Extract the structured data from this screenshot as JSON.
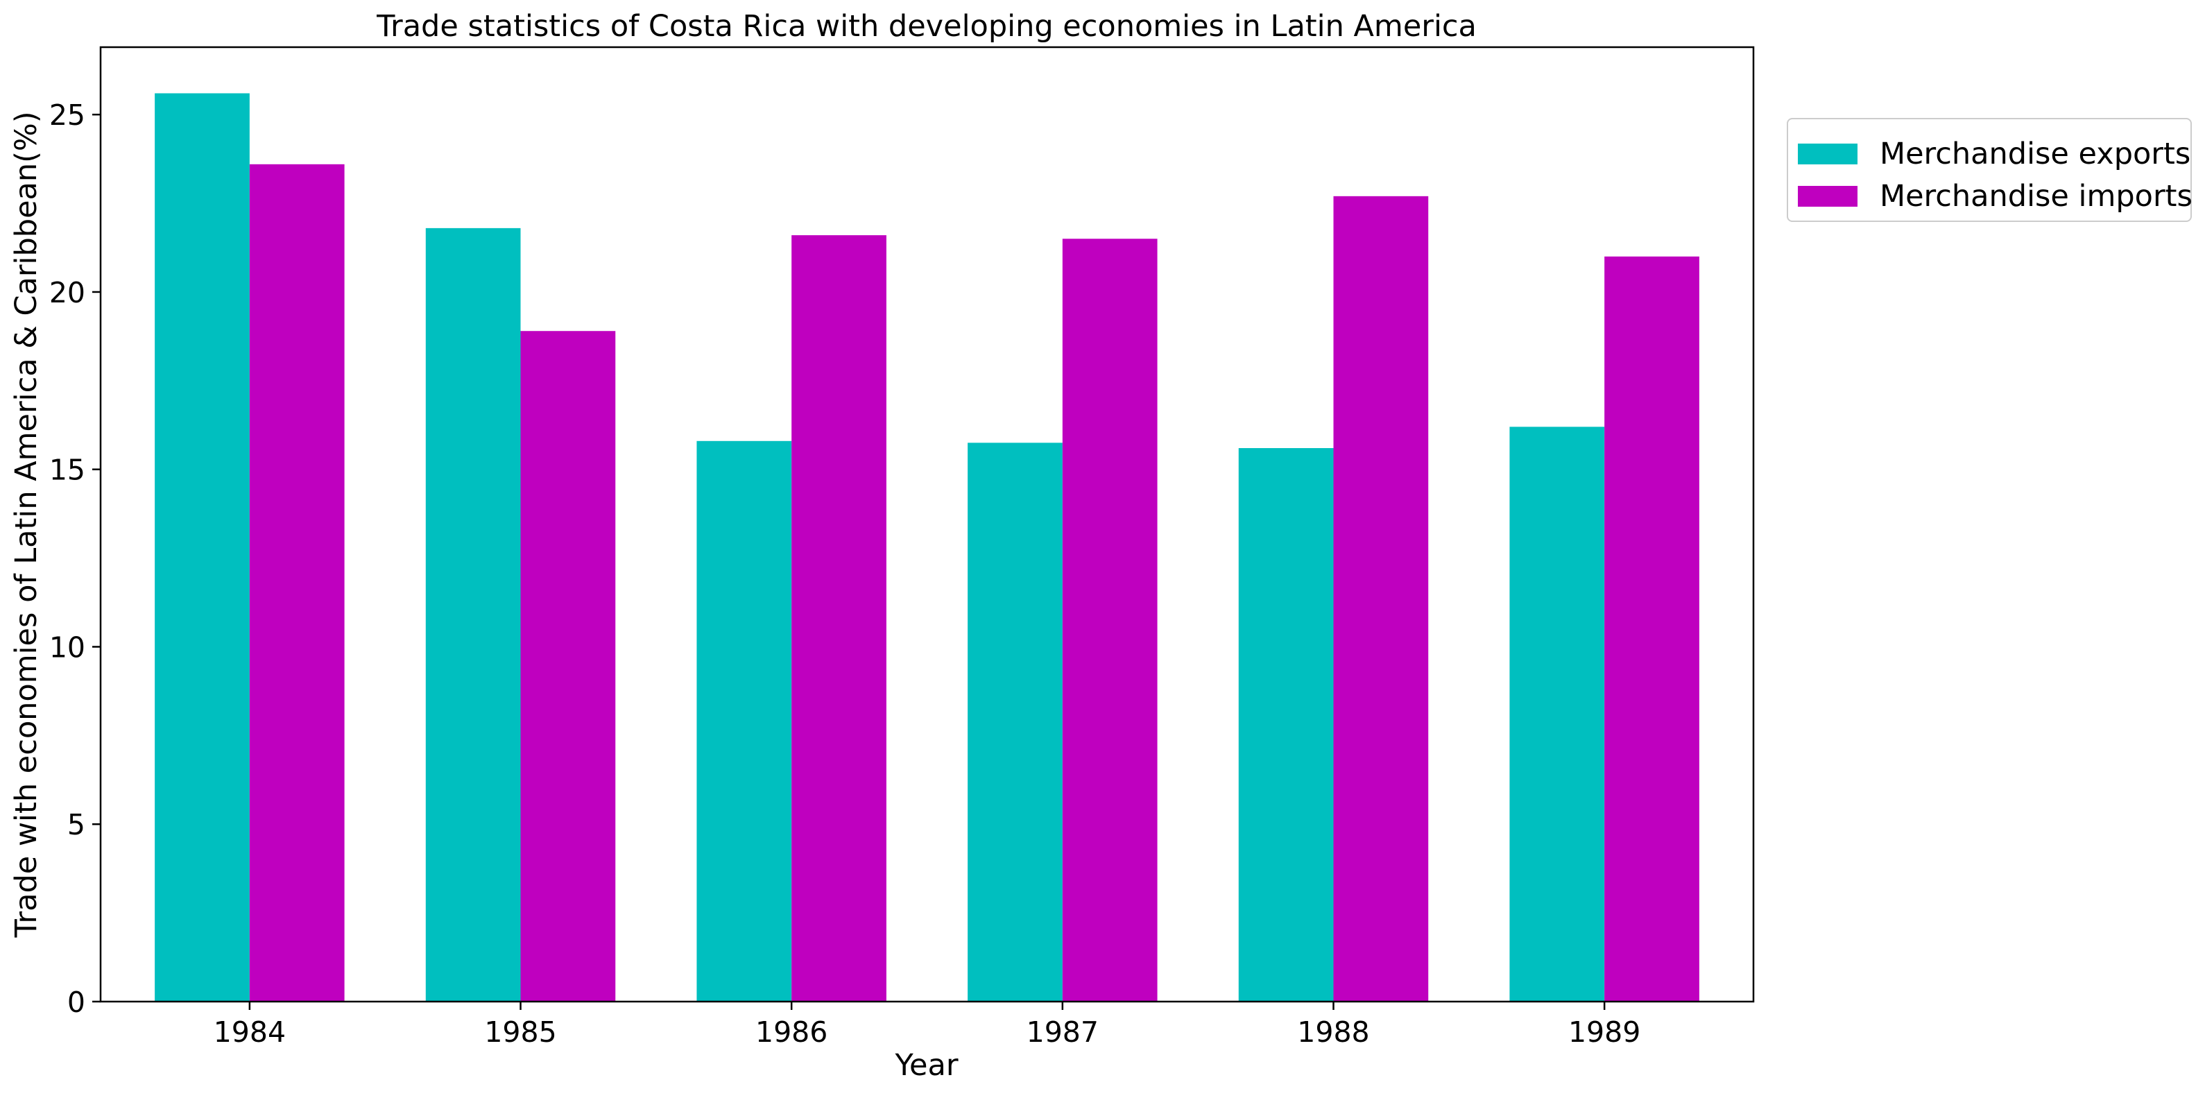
{
  "chart_data": {
    "type": "bar",
    "title": "Trade statistics of Costa Rica with developing economies in Latin America",
    "xlabel": "Year",
    "ylabel": "Trade with economies of Latin America & Caribbean(%)",
    "categories": [
      "1984",
      "1985",
      "1986",
      "1987",
      "1988",
      "1989"
    ],
    "ylim": [
      0,
      26.9
    ],
    "yticks": [
      "0",
      "5",
      "10",
      "15",
      "20",
      "25"
    ],
    "legend_position": "outside-top-right",
    "grid": false,
    "series": [
      {
        "name": "Merchandise exports",
        "color": "#00bfbf",
        "values": [
          25.6,
          21.8,
          15.8,
          15.75,
          15.6,
          16.2
        ]
      },
      {
        "name": "Merchandise imports",
        "color": "#bf00bf",
        "values": [
          23.6,
          18.9,
          21.6,
          21.5,
          22.7,
          21.0
        ]
      }
    ]
  }
}
